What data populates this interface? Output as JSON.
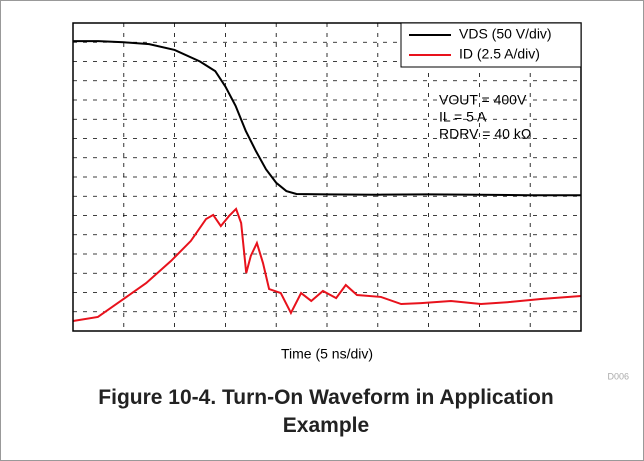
{
  "chart_data": {
    "type": "line",
    "xlabel": "Time (5 ns/div)",
    "code": "D006",
    "caption": "Figure 10-4. Turn-On Waveform in Application Example",
    "annotations": [
      "VOUT = 400V",
      "IL = 5 A",
      "RDRV = 40 kΩ"
    ],
    "legend": "upper right",
    "grid": true,
    "xlim": [
      0,
      10
    ],
    "xticks": [
      0,
      1,
      2,
      3,
      4,
      5,
      6,
      7,
      8,
      9,
      10
    ],
    "ylim": [
      0,
      16
    ],
    "yticks": [
      0,
      1,
      2,
      3,
      4,
      5,
      6,
      7,
      8,
      9,
      10,
      11,
      12,
      13,
      14,
      15,
      16
    ],
    "series": [
      {
        "name": "VDS (50 V/div)",
        "color": "#000000",
        "x": [
          0,
          0.5,
          1.0,
          1.5,
          2.0,
          2.5,
          2.8,
          3.0,
          3.2,
          3.4,
          3.6,
          3.8,
          4.0,
          4.2,
          4.4,
          5,
          6,
          7,
          8,
          9,
          10
        ],
        "values": [
          15.06,
          15.06,
          15.0,
          14.9,
          14.6,
          14.0,
          13.5,
          12.7,
          11.7,
          10.4,
          9.35,
          8.4,
          7.7,
          7.27,
          7.12,
          7.1,
          7.08,
          7.1,
          7.08,
          7.05,
          7.05
        ]
      },
      {
        "name": "ID (2.5 A/div)",
        "color": "#e8121c",
        "x": [
          0,
          0.49,
          0.94,
          1.44,
          1.93,
          2.32,
          2.62,
          2.76,
          2.91,
          3.07,
          3.21,
          3.31,
          3.41,
          3.5,
          3.62,
          3.74,
          3.86,
          4.09,
          4.29,
          4.49,
          4.69,
          4.92,
          5.18,
          5.37,
          5.59,
          6.06,
          6.46,
          6.85,
          7.44,
          8.03,
          8.62,
          9.21,
          10
        ],
        "values": [
          0.52,
          0.73,
          1.56,
          2.49,
          3.64,
          4.68,
          5.82,
          6.03,
          5.45,
          5.97,
          6.34,
          5.61,
          3.01,
          3.9,
          4.57,
          3.53,
          2.18,
          1.97,
          0.94,
          1.97,
          1.56,
          2.08,
          1.71,
          2.39,
          1.87,
          1.77,
          1.4,
          1.45,
          1.56,
          1.4,
          1.51,
          1.66,
          1.82
        ]
      }
    ]
  }
}
